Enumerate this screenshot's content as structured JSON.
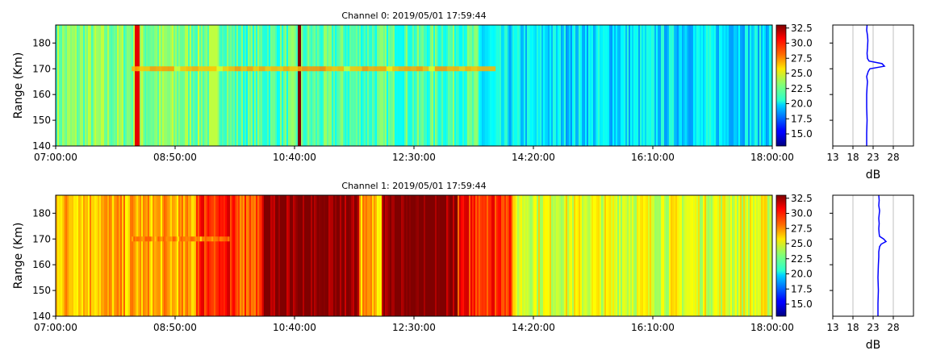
{
  "chart_data": [
    {
      "type": "heatmap",
      "title": "Channel 0: 2019/05/01 17:59:44",
      "ylabel": "Range (Km)",
      "xlabel": "",
      "x_ticks": [
        "07:00:00",
        "08:50:00",
        "10:40:00",
        "12:30:00",
        "14:20:00",
        "16:10:00",
        "18:00:00"
      ],
      "xlim": [
        "07:00:00",
        "18:00:00"
      ],
      "y_ticks": [
        140,
        150,
        160,
        170,
        180
      ],
      "ylim": [
        140,
        187
      ],
      "colorbar": {
        "ticks": [
          15.0,
          17.5,
          20.0,
          22.5,
          25.0,
          27.5,
          30.0,
          32.5
        ],
        "range": [
          13,
          33
        ],
        "colormap": "jet"
      },
      "approx_levels": [
        {
          "from": "07:00:00",
          "to": "09:40:00",
          "level": 23.0
        },
        {
          "from": "09:40:00",
          "to": "13:30:00",
          "level": 22.0
        },
        {
          "from": "13:30:00",
          "to": "18:00:00",
          "level": 20.0
        }
      ],
      "features": [
        {
          "type": "echo_layer",
          "range_km": 170,
          "from": "08:10:00",
          "to": "13:45:00",
          "level": 28.0
        },
        {
          "type": "spike",
          "at": "10:45:00",
          "level": 33.0
        },
        {
          "type": "spike",
          "at": "08:15:00",
          "level": 31.0
        }
      ]
    },
    {
      "type": "line",
      "xlabel": "dB",
      "x_ticks": [
        13,
        18,
        23,
        28
      ],
      "xlim": [
        13,
        33
      ],
      "ylim": [
        140,
        187
      ],
      "grid": true,
      "color": "#0000ff",
      "series": [
        {
          "x": [
            21.4,
            21.4,
            21.5,
            21.4,
            21.4,
            21.5,
            21.6,
            21.5,
            21.4,
            21.6,
            21.8,
            22.2,
            25.8,
            25.2,
            22.0,
            21.6,
            21.5,
            21.6,
            21.7,
            21.6,
            21.4,
            21.5
          ],
          "y": [
            140,
            145,
            150,
            155,
            160,
            163,
            165,
            166,
            167,
            168,
            169,
            170,
            171,
            172,
            173,
            174,
            176,
            178,
            181,
            183,
            185,
            187
          ]
        }
      ]
    },
    {
      "type": "heatmap",
      "title": "Channel 1: 2019/05/01 17:59:44",
      "ylabel": "Range (Km)",
      "xlabel": "",
      "x_ticks": [
        "07:00:00",
        "08:50:00",
        "10:40:00",
        "12:30:00",
        "14:20:00",
        "16:10:00",
        "18:00:00"
      ],
      "xlim": [
        "07:00:00",
        "18:00:00"
      ],
      "y_ticks": [
        140,
        150,
        160,
        170,
        180
      ],
      "ylim": [
        140,
        187
      ],
      "colorbar": {
        "ticks": [
          15.0,
          17.5,
          20.0,
          22.5,
          25.0,
          27.5,
          30.0,
          32.5
        ],
        "range": [
          13,
          33
        ],
        "colormap": "jet"
      },
      "approx_levels": [
        {
          "from": "07:00:00",
          "to": "09:10:00",
          "level": 27.0
        },
        {
          "from": "09:10:00",
          "to": "09:40:00",
          "level": 30.0
        },
        {
          "from": "09:40:00",
          "to": "10:10:00",
          "level": 29.0
        },
        {
          "from": "10:10:00",
          "to": "11:40:00",
          "level": 33.0
        },
        {
          "from": "11:40:00",
          "to": "12:00:00",
          "level": 27.0
        },
        {
          "from": "12:00:00",
          "to": "13:10:00",
          "level": 33.0
        },
        {
          "from": "13:10:00",
          "to": "14:00:00",
          "level": 30.0
        },
        {
          "from": "14:00:00",
          "to": "18:00:00",
          "level": 25.0
        }
      ],
      "features": [
        {
          "type": "echo_layer",
          "range_km": 170,
          "from": "08:10:00",
          "to": "09:40:00",
          "level": 29.0
        }
      ]
    },
    {
      "type": "line",
      "xlabel": "dB",
      "x_ticks": [
        13,
        18,
        23,
        28
      ],
      "xlim": [
        13,
        33
      ],
      "ylim": [
        140,
        187
      ],
      "grid": true,
      "color": "#0000ff",
      "series": [
        {
          "x": [
            24.2,
            24.2,
            24.3,
            24.2,
            24.3,
            24.4,
            24.4,
            24.5,
            24.6,
            25.0,
            26.2,
            25.6,
            24.6,
            24.5,
            24.4,
            24.5,
            24.4,
            24.6,
            24.4,
            24.5,
            24.4
          ],
          "y": [
            140,
            145,
            150,
            155,
            160,
            163,
            165,
            166,
            167,
            168,
            169,
            170,
            171,
            172,
            174,
            176,
            178,
            181,
            183,
            185,
            187
          ]
        }
      ]
    }
  ]
}
